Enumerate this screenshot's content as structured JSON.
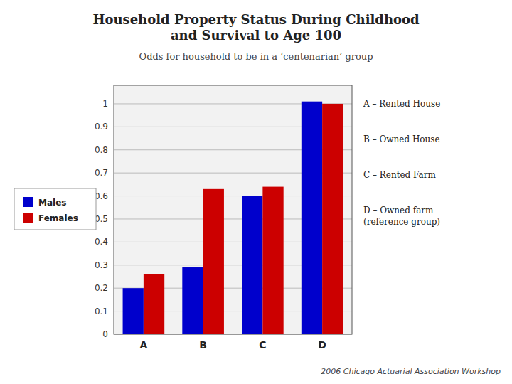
{
  "chart_data": {
    "type": "bar",
    "title": "Household Property Status During Childhood\nand Survival to Age 100",
    "subtitle": "Odds for household to be in a ‘centenarian’ group",
    "categories": [
      "A",
      "B",
      "C",
      "D"
    ],
    "series": [
      {
        "name": "Males",
        "color": "#0000CC",
        "values": [
          0.2,
          0.29,
          0.6,
          1.01
        ]
      },
      {
        "name": "Females",
        "color": "#CC0000",
        "values": [
          0.26,
          0.63,
          0.64,
          1.0
        ]
      }
    ],
    "ylim": [
      0,
      1.08
    ],
    "yticks": [
      0,
      0.1,
      0.2,
      0.3,
      0.4,
      0.5,
      0.6,
      0.7,
      0.8,
      0.9,
      1
    ],
    "grid": true,
    "legend": "left",
    "annotations": [
      "A – Rented House",
      "B – Owned House",
      "C – Rented Farm",
      "D – Owned farm\n(reference group)"
    ],
    "footer": "2006 Chicago Actuarial Association Workshop"
  }
}
